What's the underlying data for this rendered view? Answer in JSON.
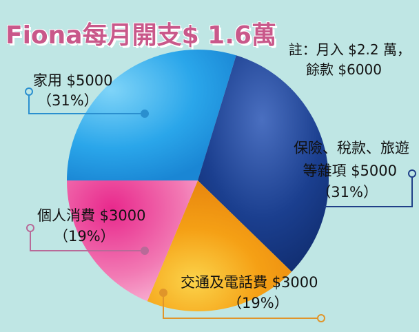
{
  "title": "Fiona每月開支$ 1.6萬",
  "note": {
    "line1": "註：月入 $2.2 萬，",
    "line2": "餘款 $6000"
  },
  "chart_data": {
    "type": "pie",
    "title": "Fiona每月開支$ 1.6萬",
    "slices": [
      {
        "name": "家用",
        "value": 5000,
        "percent": "31%",
        "label": "家用 $5000",
        "pct_label": "（31%）",
        "color": "#2a9de6"
      },
      {
        "name": "保險、稅款、旅遊等雜項",
        "value": 5000,
        "percent": "31%",
        "label1": "保險、稅款、旅遊",
        "label2": "等雜項 $5000",
        "pct_label": "（31%）",
        "color": "#12367f"
      },
      {
        "name": "交通及電話費",
        "value": 3000,
        "percent": "19%",
        "label": "交通及電話費 $3000",
        "pct_label": "（19%）",
        "color": "#f29a12"
      },
      {
        "name": "個人消費",
        "value": 3000,
        "percent": "19%",
        "label": "個人消費 $3000",
        "pct_label": "（19%）",
        "color": "#ef68a6"
      }
    ],
    "leader_colors": {
      "household": "#2a8fcf",
      "misc": "#1f3f88",
      "transport": "#e0952a",
      "personal": "#b86a98"
    }
  }
}
